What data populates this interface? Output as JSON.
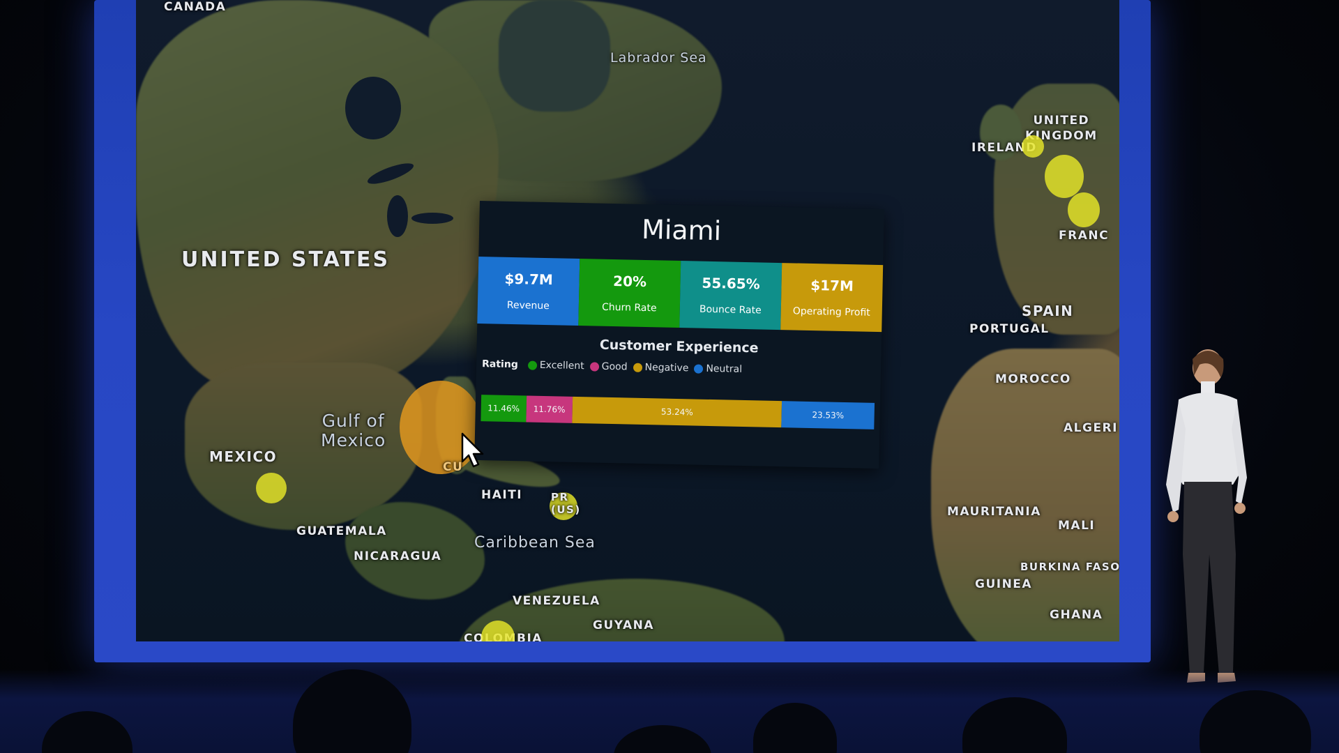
{
  "map": {
    "labels": {
      "united_states": "UNITED STATES",
      "mexico": "MEXICO",
      "gulf_of_mexico": "Gulf of\nMexico",
      "guatemala": "GUATEMALA",
      "nicaragua": "NICARAGUA",
      "haiti": "HAITI",
      "pr": "PR\n(US)",
      "caribbean_sea": "Caribbean Sea",
      "venezuela": "VENEZUELA",
      "guyana": "GUYANA",
      "colombia": "COLOMBIA",
      "labrador_sea": "Labrador Sea",
      "united_kingdom": "UNITED\nKINGDOM",
      "ireland": "IRELAND",
      "france": "FRANC",
      "spain": "SPAIN",
      "portugal": "PORTUGAL",
      "morocco": "MOROCCO",
      "algeria": "ALGERI",
      "mauritania": "MAURITANIA",
      "mali": "MALI",
      "burkina_faso": "BURKINA FASO",
      "guinea": "GUINEA",
      "ghana": "GHANA",
      "canada": "CANADA",
      "cuba": "CU"
    },
    "colors": {
      "bubble_default": "#e6e628",
      "bubble_selected": "#e1961e"
    }
  },
  "tooltip": {
    "title": "Miami",
    "kpis": [
      {
        "value": "$9.7M",
        "label": "Revenue",
        "color": "#1b72d0"
      },
      {
        "value": "20%",
        "label": "Churn Rate",
        "color": "#14990e"
      },
      {
        "value": "55.65%",
        "label": "Bounce Rate",
        "color": "#0f8f8a"
      },
      {
        "value": "$17M",
        "label": "Operating Profit",
        "color": "#c79a0b"
      }
    ],
    "customer_experience": {
      "title": "Customer Experience",
      "legend_title": "Rating",
      "legend": [
        {
          "label": "Excellent",
          "color": "#14990e"
        },
        {
          "label": "Good",
          "color": "#c7367d"
        },
        {
          "label": "Negative",
          "color": "#c79a0b"
        },
        {
          "label": "Neutral",
          "color": "#1b72d0"
        }
      ],
      "bar": [
        {
          "label": "11.46%",
          "value": 11.46,
          "color": "#14990e"
        },
        {
          "label": "11.76%",
          "value": 11.76,
          "color": "#c7367d"
        },
        {
          "label": "53.24%",
          "value": 53.24,
          "color": "#c79a0b"
        },
        {
          "label": "23.53%",
          "value": 23.53,
          "color": "#1b72d0"
        }
      ]
    }
  }
}
